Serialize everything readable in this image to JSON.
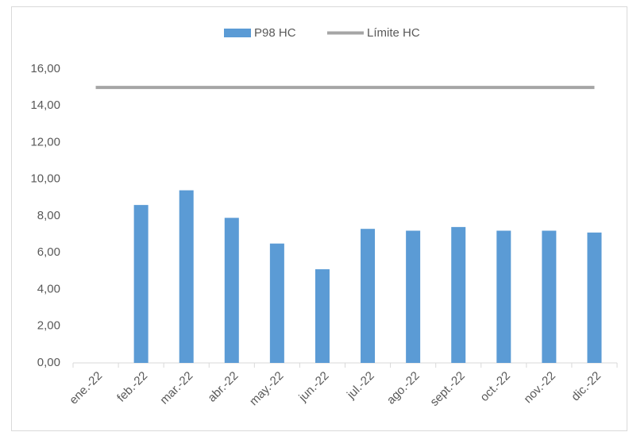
{
  "chart_data": {
    "type": "bar",
    "categories": [
      "ene.-22",
      "feb.-22",
      "mar.-22",
      "abr.-22",
      "may.-22",
      "jun.-22",
      "jul.-22",
      "ago.-22",
      "sept.-22",
      "oct.-22",
      "nov.-22",
      "dic.-22"
    ],
    "series": [
      {
        "name": "P98 HC",
        "type": "bar",
        "color": "#5b9bd5",
        "values": [
          null,
          8.6,
          9.4,
          7.9,
          6.5,
          5.1,
          7.3,
          7.2,
          7.4,
          7.2,
          7.2,
          7.1
        ]
      },
      {
        "name": "Límite HC",
        "type": "line",
        "color": "#a5a5a5",
        "values": [
          15,
          15,
          15,
          15,
          15,
          15,
          15,
          15,
          15,
          15,
          15,
          15
        ]
      }
    ],
    "ylim": [
      0,
      16
    ],
    "yticks": [
      {
        "value": 0,
        "label": "0,00"
      },
      {
        "value": 2,
        "label": "2,00"
      },
      {
        "value": 4,
        "label": "4,00"
      },
      {
        "value": 6,
        "label": "6,00"
      },
      {
        "value": 8,
        "label": "8,00"
      },
      {
        "value": 10,
        "label": "10,00"
      },
      {
        "value": 12,
        "label": "12,00"
      },
      {
        "value": 14,
        "label": "14,00"
      },
      {
        "value": 16,
        "label": "16,00"
      }
    ],
    "grid": false,
    "legend": "top"
  }
}
